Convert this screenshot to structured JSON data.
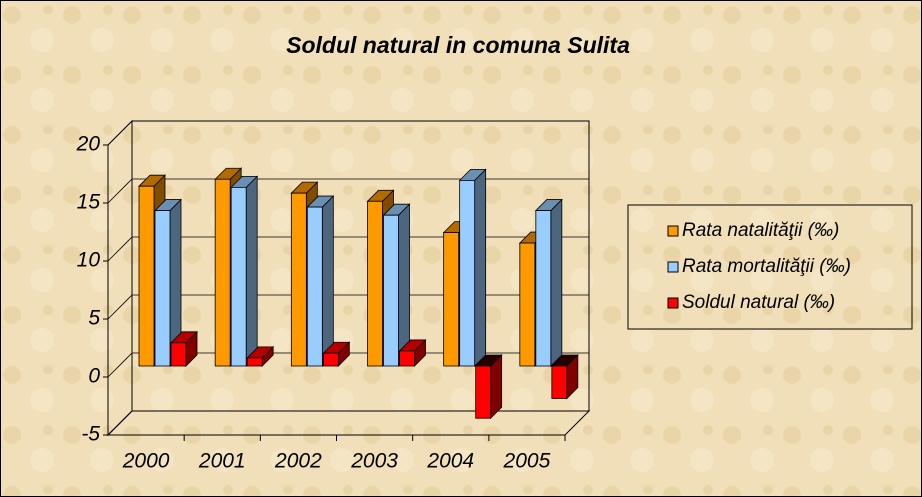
{
  "chart_data": {
    "type": "bar3d",
    "title": "Soldul natural in comuna  Sulita",
    "categories": [
      "2000",
      "2001",
      "2002",
      "2003",
      "2004",
      "2005"
    ],
    "series": [
      {
        "name": "Rata natalităţii (‰)",
        "color": "#ff9900",
        "values": [
          15.5,
          16.1,
          14.9,
          14.2,
          11.5,
          10.6
        ]
      },
      {
        "name": "Rata mortalităţii (‰)",
        "color": "#99ccff",
        "values": [
          13.4,
          15.4,
          13.7,
          13.0,
          16.0,
          13.4
        ]
      },
      {
        "name": "Soldul natural (‰)",
        "color": "#ff0000",
        "values": [
          2.0,
          0.7,
          1.1,
          1.3,
          -4.5,
          -2.8
        ]
      }
    ],
    "ylim": [
      -5,
      20
    ],
    "yticks": [
      -5,
      0,
      5,
      10,
      15,
      20
    ],
    "grid": true,
    "legend": "right"
  }
}
